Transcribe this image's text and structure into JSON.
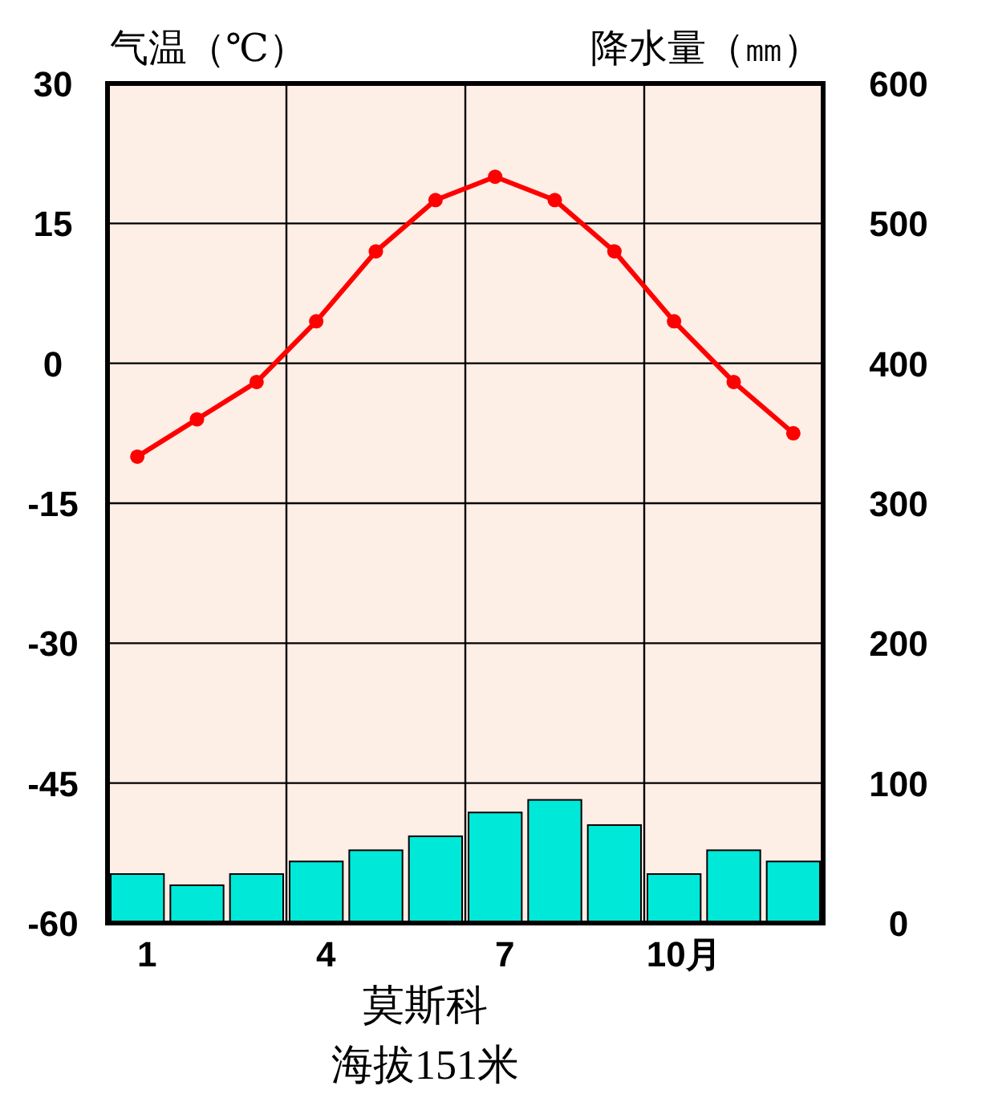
{
  "chart_data": {
    "type": "bar",
    "categories": [
      "1",
      null,
      null,
      "4",
      null,
      null,
      "7",
      null,
      null,
      "10月",
      null,
      null
    ],
    "series": [
      {
        "name": null,
        "axis": "y2",
        "color": "#00e8d8",
        "values": [
          35,
          27,
          35,
          44,
          52,
          62,
          79,
          88,
          70,
          35,
          52,
          44
        ]
      },
      {
        "name": null,
        "type": "line",
        "axis": "y",
        "color": "#ff0000",
        "marker": "circle",
        "values": [
          -10,
          -6,
          -2,
          4.5,
          12,
          17.5,
          20,
          17.5,
          12,
          4.5,
          -2,
          -7.5
        ]
      }
    ],
    "ylabel": "气温（℃）",
    "y2label": "降水量（㎜）",
    "ylim": [
      -60,
      30
    ],
    "yticks": [
      -60,
      -45,
      -30,
      -15,
      0,
      15,
      30
    ],
    "y2lim": [
      0,
      600
    ],
    "y2ticks": [
      0,
      100,
      200,
      300,
      400,
      500,
      600
    ],
    "grid": true,
    "annotations": [
      "莫斯科",
      "海拔151米"
    ]
  }
}
